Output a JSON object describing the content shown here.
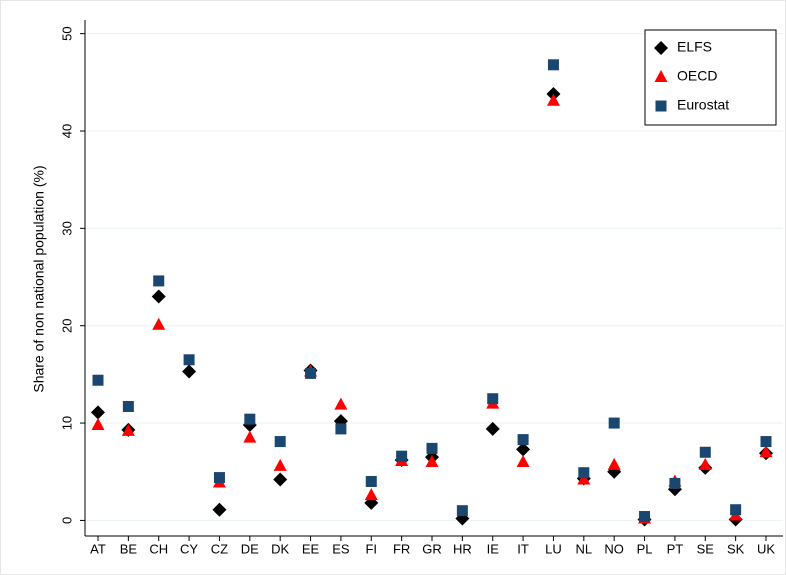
{
  "chart_data": {
    "type": "scatter",
    "y_label": "Share of non national population (%)",
    "categories": [
      "AT",
      "BE",
      "CH",
      "CY",
      "CZ",
      "DE",
      "DK",
      "EE",
      "ES",
      "FI",
      "FR",
      "GR",
      "HR",
      "IE",
      "IT",
      "LU",
      "NL",
      "NO",
      "PL",
      "PT",
      "SE",
      "SK",
      "UK"
    ],
    "series": [
      {
        "name": "ELFS",
        "color": "#000000",
        "marker": "diamond",
        "values": [
          11.1,
          9.3,
          23.0,
          15.3,
          1.1,
          9.8,
          4.2,
          15.4,
          10.2,
          1.8,
          6.2,
          6.5,
          0.2,
          9.4,
          7.3,
          43.8,
          4.3,
          5.0,
          0.1,
          3.2,
          5.4,
          0.1,
          6.9
        ]
      },
      {
        "name": "OECD",
        "color": "#ff0000",
        "marker": "triangle",
        "values": [
          9.8,
          9.2,
          20.1,
          null,
          3.9,
          8.5,
          5.6,
          15.3,
          11.9,
          2.6,
          6.1,
          6.0,
          null,
          12.0,
          6.0,
          43.1,
          4.2,
          5.7,
          0.2,
          4.0,
          5.7,
          0.5,
          7.0
        ]
      },
      {
        "name": "Eurostat",
        "color": "#1a476f",
        "marker": "square",
        "values": [
          14.4,
          11.7,
          24.6,
          16.5,
          4.4,
          10.4,
          8.1,
          15.1,
          9.4,
          4.0,
          6.6,
          7.4,
          1.0,
          12.5,
          8.3,
          46.8,
          4.9,
          10.0,
          0.4,
          3.8,
          7.0,
          1.1,
          8.1
        ]
      }
    ],
    "ylim": [
      -1.6,
      51.4
    ],
    "yticks": [
      0,
      10,
      20,
      30,
      40,
      50
    ],
    "grid": true,
    "legend": "top-right"
  }
}
